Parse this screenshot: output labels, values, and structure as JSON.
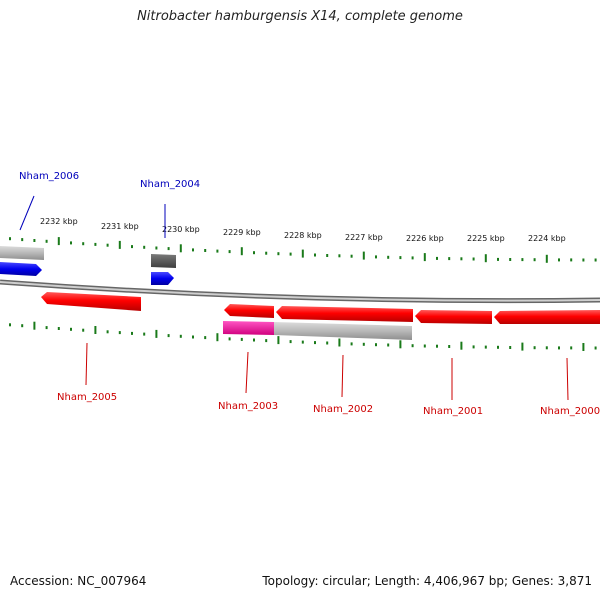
{
  "title": "Nitrobacter hamburgensis X14, complete genome",
  "footer": {
    "accession": "Accession: NC_007964",
    "summary": "Topology: circular; Length: 4,406,967 bp; Genes: 3,871"
  },
  "scale_labels": [
    "2232 kbp",
    "2231 kbp",
    "2230 kbp",
    "2229 kbp",
    "2228 kbp",
    "2227 kbp",
    "2226 kbp",
    "2225 kbp",
    "2224 kbp"
  ],
  "gene_labels": {
    "forward": [
      "Nham_2006",
      "Nham_2004"
    ],
    "reverse": [
      "Nham_2005",
      "Nham_2003",
      "Nham_2002",
      "Nham_2001",
      "Nham_2000"
    ]
  },
  "colors": {
    "forward_gene": "#0000ee",
    "reverse_gene": "#ee0000",
    "backbone": "#888888",
    "tick": "#1a7a1a",
    "pseudo": "#555555",
    "highlight": "#ee1199"
  }
}
